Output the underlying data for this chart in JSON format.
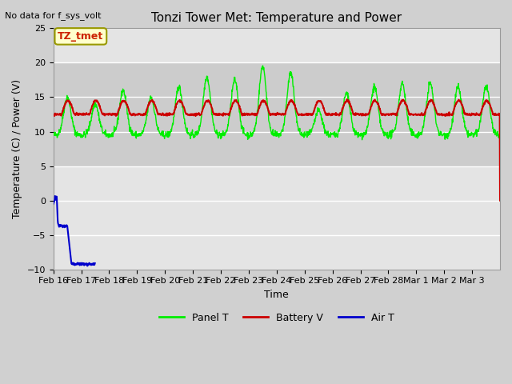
{
  "title": "Tonzi Tower Met: Temperature and Power",
  "top_left_text": "No data for f_sys_volt",
  "ylabel": "Temperature (C) / Power (V)",
  "xlabel": "Time",
  "ylim": [
    -10,
    25
  ],
  "yticks": [
    -10,
    -5,
    0,
    5,
    10,
    15,
    20,
    25
  ],
  "x_tick_labels": [
    "Feb 16",
    "Feb 17",
    "Feb 18",
    "Feb 19",
    "Feb 20",
    "Feb 21",
    "Feb 22",
    "Feb 23",
    "Feb 24",
    "Feb 25",
    "Feb 26",
    "Feb 27",
    "Feb 28",
    "Mar 1",
    "Mar 2",
    "Mar 3"
  ],
  "annotation_text": "TZ_tmet",
  "fig_bg_color": "#d0d0d0",
  "plot_bg_color": "#e4e4e4",
  "shaded_band_low": 5,
  "shaded_band_high": 20,
  "shaded_band_color": "#cccccc",
  "grid_color": "#ffffff",
  "panel_T_color": "#00ee00",
  "battery_V_color": "#cc0000",
  "air_T_color": "#0000cc",
  "legend_entries": [
    "Panel T",
    "Battery V",
    "Air T"
  ],
  "legend_colors": [
    "#00ee00",
    "#cc0000",
    "#0000cc"
  ]
}
